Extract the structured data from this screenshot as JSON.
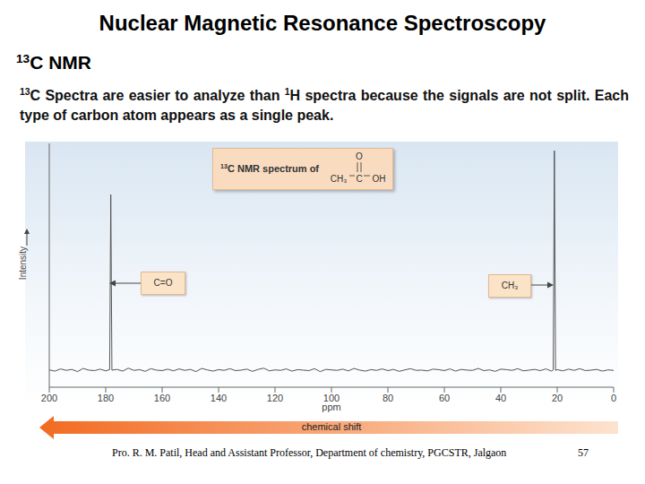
{
  "slide": {
    "title": "Nuclear Magnetic Resonance Spectroscopy",
    "heading": [
      {
        "sup": "13"
      },
      "C NMR"
    ],
    "body": [
      {
        "sup": "13"
      },
      "C Spectra are easier to analyze than ",
      {
        "sup": "1"
      },
      "H spectra because the signals are not split. Each type of carbon atom appears as a single peak."
    ],
    "footer": "Pro. R. M. Patil, Head and Assistant Professor, Department of chemistry, PGCSTR, Jalgaon",
    "page": "57"
  },
  "chart_data": {
    "type": "line",
    "title": [
      {
        "sup": "13"
      },
      "C NMR spectrum of"
    ],
    "structure": {
      "methyl": "CH₃",
      "carbon": "C",
      "oxygen": "O",
      "hydroxyl": "OH"
    },
    "xlabel": "ppm",
    "ylabel": "Intensity",
    "arrow_label": "chemical shift",
    "annotations": [
      "C=O",
      "CH₃"
    ],
    "xlim": [
      200,
      0
    ],
    "xticks": [
      200,
      180,
      160,
      140,
      120,
      100,
      80,
      60,
      40,
      20,
      0
    ],
    "ylim": [
      0,
      100
    ],
    "tick_labels": "x",
    "grid": false,
    "color": "#555555",
    "x": [
      200,
      198,
      196,
      194,
      192,
      190,
      188,
      186,
      184,
      182,
      180,
      178.6,
      178.2,
      177.8,
      176,
      174,
      172,
      170,
      168,
      166,
      164,
      162,
      160,
      158,
      156,
      154,
      152,
      150,
      148,
      146,
      144,
      142,
      140,
      138,
      136,
      134,
      132,
      130,
      128,
      126,
      124,
      122,
      120,
      118,
      116,
      114,
      112,
      110,
      108,
      106,
      104,
      102,
      100,
      98,
      96,
      94,
      92,
      90,
      88,
      86,
      84,
      82,
      80,
      78,
      76,
      74,
      72,
      70,
      68,
      66,
      64,
      62,
      60,
      58,
      56,
      54,
      52,
      50,
      48,
      46,
      44,
      42,
      40,
      38,
      36,
      34,
      32,
      30,
      28,
      26,
      24,
      22,
      21.4,
      21,
      20.6,
      20,
      18,
      16,
      14,
      12,
      10,
      8,
      6,
      4,
      2,
      0
    ],
    "values": [
      7.1,
      6.6,
      7.5,
      6.9,
      7.3,
      6.4,
      7.7,
      7.0,
      6.8,
      7.4,
      6.7,
      7.2,
      79,
      7.0,
      7.3,
      6.6,
      7.8,
      6.9,
      7.2,
      6.5,
      7.6,
      7.0,
      6.8,
      7.4,
      6.7,
      7.5,
      6.9,
      7.3,
      6.4,
      7.7,
      7.1,
      6.6,
      7.2,
      6.9,
      7.6,
      6.8,
      7.0,
      7.4,
      6.5,
      7.3,
      7.8,
      6.7,
      7.1,
      6.9,
      7.5,
      6.6,
      7.2,
      7.0,
      6.8,
      7.6,
      6.4,
      7.3,
      7.1,
      6.9,
      7.4,
      6.7,
      7.7,
      7.0,
      6.6,
      7.2,
      6.9,
      7.5,
      6.8,
      7.3,
      6.5,
      7.1,
      7.6,
      6.9,
      7.0,
      6.7,
      7.4,
      7.2,
      6.8,
      7.5,
      6.6,
      7.3,
      7.0,
      6.9,
      7.7,
      6.8,
      7.1,
      6.5,
      7.4,
      7.2,
      6.9,
      7.6,
      6.7,
      7.0,
      7.3,
      6.8,
      7.5,
      6.6,
      7.1,
      97,
      6.9,
      7.2,
      6.7,
      7.4,
      6.9,
      7.6,
      6.8,
      7.0,
      7.3,
      6.6,
      7.1,
      6.9
    ]
  }
}
